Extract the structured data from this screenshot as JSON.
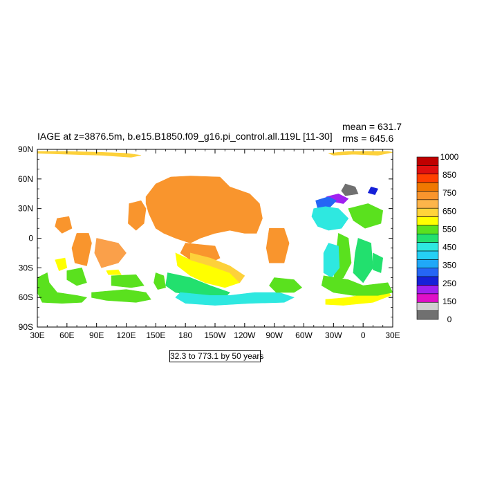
{
  "title": "IAGE at z=3876.5m, b.e15.B1850.f09_g16.pi_control.all.119L [11-30]",
  "stats": {
    "mean": "mean = 631.7",
    "rms": "rms = 645.6"
  },
  "subtitle": "32.3 to 773.1 by 50 years",
  "map": {
    "projection": "cylindrical-equidistant",
    "lon_range": [
      30,
      390
    ],
    "lat_range": [
      -90,
      90
    ],
    "x_ticks": [
      "30E",
      "60E",
      "90E",
      "120E",
      "150E",
      "180",
      "150W",
      "120W",
      "90W",
      "60W",
      "30W",
      "0",
      "30E"
    ],
    "y_ticks": [
      "90N",
      "60N",
      "30N",
      "0",
      "30S",
      "60S",
      "90S"
    ],
    "regions": [
      {
        "id": "arctic-west",
        "color": "#fdd13a",
        "poly": [
          [
            30,
            88
          ],
          [
            60,
            88
          ],
          [
            95,
            87
          ],
          [
            120,
            86
          ],
          [
            135,
            84
          ],
          [
            125,
            82
          ],
          [
            95,
            84
          ],
          [
            60,
            85
          ],
          [
            30,
            86
          ]
        ]
      },
      {
        "id": "arctic-east",
        "color": "#fdd13a",
        "poly": [
          [
            325,
            86
          ],
          [
            345,
            88
          ],
          [
            385,
            88
          ],
          [
            390,
            87
          ],
          [
            375,
            84
          ],
          [
            350,
            85
          ],
          [
            330,
            84
          ]
        ]
      },
      {
        "id": "n-pacific-orange",
        "color": "#f9952d",
        "poly": [
          [
            140,
            42
          ],
          [
            150,
            55
          ],
          [
            165,
            62
          ],
          [
            185,
            63
          ],
          [
            215,
            62
          ],
          [
            225,
            52
          ],
          [
            245,
            45
          ],
          [
            255,
            35
          ],
          [
            258,
            20
          ],
          [
            252,
            5
          ],
          [
            240,
            5
          ],
          [
            225,
            8
          ],
          [
            210,
            5
          ],
          [
            195,
            0
          ],
          [
            185,
            -5
          ],
          [
            170,
            0
          ],
          [
            158,
            5
          ],
          [
            150,
            10
          ],
          [
            143,
            25
          ],
          [
            140,
            35
          ]
        ]
      },
      {
        "id": "w-pacific-orange",
        "color": "#f9952d",
        "poly": [
          [
            123,
            35
          ],
          [
            135,
            38
          ],
          [
            140,
            30
          ],
          [
            138,
            15
          ],
          [
            130,
            8
          ],
          [
            122,
            15
          ]
        ]
      },
      {
        "id": "central-pacific-orange",
        "color": "#f9952d",
        "poly": [
          [
            180,
            -5
          ],
          [
            210,
            -8
          ],
          [
            215,
            -20
          ],
          [
            205,
            -25
          ],
          [
            185,
            -22
          ],
          [
            175,
            -15
          ]
        ]
      },
      {
        "id": "indian-orange-1",
        "color": "#f9952d",
        "poly": [
          [
            70,
            5
          ],
          [
            82,
            5
          ],
          [
            85,
            -5
          ],
          [
            80,
            -28
          ],
          [
            68,
            -25
          ],
          [
            65,
            -10
          ]
        ]
      },
      {
        "id": "indian-orange-2",
        "color": "#faa04a",
        "poly": [
          [
            90,
            0
          ],
          [
            112,
            -5
          ],
          [
            120,
            -15
          ],
          [
            112,
            -25
          ],
          [
            95,
            -30
          ],
          [
            88,
            -15
          ]
        ]
      },
      {
        "id": "arabian",
        "color": "#f9952d",
        "poly": [
          [
            50,
            20
          ],
          [
            62,
            22
          ],
          [
            65,
            10
          ],
          [
            55,
            5
          ],
          [
            48,
            12
          ]
        ]
      },
      {
        "id": "atlantic-orange",
        "color": "#f9952d",
        "poly": [
          [
            265,
            10
          ],
          [
            280,
            10
          ],
          [
            285,
            -5
          ],
          [
            280,
            -25
          ],
          [
            265,
            -25
          ],
          [
            262,
            -10
          ]
        ]
      },
      {
        "id": "arctic-gray",
        "color": "#707070",
        "poly": [
          [
            342,
            55
          ],
          [
            352,
            52
          ],
          [
            355,
            45
          ],
          [
            342,
            43
          ],
          [
            338,
            48
          ]
        ]
      },
      {
        "id": "labrador-purple",
        "color": "#a020f0",
        "poly": [
          [
            323,
            42
          ],
          [
            335,
            45
          ],
          [
            345,
            40
          ],
          [
            340,
            35
          ],
          [
            325,
            38
          ]
        ]
      },
      {
        "id": "nordic-blue",
        "color": "#1520d8",
        "poly": [
          [
            368,
            52
          ],
          [
            375,
            50
          ],
          [
            372,
            44
          ],
          [
            365,
            46
          ]
        ]
      },
      {
        "id": "n-atlantic-blue",
        "color": "#2566f5",
        "poly": [
          [
            312,
            38
          ],
          [
            325,
            42
          ],
          [
            333,
            38
          ],
          [
            325,
            30
          ],
          [
            314,
            30
          ]
        ]
      },
      {
        "id": "n-atlantic-cyan",
        "color": "#2ee8e0",
        "poly": [
          [
            310,
            30
          ],
          [
            322,
            32
          ],
          [
            335,
            30
          ],
          [
            345,
            20
          ],
          [
            338,
            10
          ],
          [
            325,
            8
          ],
          [
            314,
            12
          ],
          [
            308,
            22
          ]
        ]
      },
      {
        "id": "n-atlantic-green",
        "color": "#5ae11e",
        "poly": [
          [
            345,
            30
          ],
          [
            365,
            35
          ],
          [
            380,
            28
          ],
          [
            378,
            15
          ],
          [
            362,
            10
          ],
          [
            350,
            18
          ]
        ]
      },
      {
        "id": "s-atlantic-green",
        "color": "#5ae11e",
        "poly": [
          [
            335,
            5
          ],
          [
            345,
            0
          ],
          [
            348,
            -25
          ],
          [
            340,
            -40
          ],
          [
            330,
            -45
          ],
          [
            332,
            -20
          ]
        ]
      },
      {
        "id": "s-atlantic-cyan",
        "color": "#2ee8e0",
        "poly": [
          [
            325,
            -5
          ],
          [
            335,
            -8
          ],
          [
            336,
            -30
          ],
          [
            328,
            -40
          ],
          [
            320,
            -35
          ],
          [
            320,
            -15
          ]
        ]
      },
      {
        "id": "s-atlantic-green-2",
        "color": "#22e06e",
        "poly": [
          [
            355,
            0
          ],
          [
            368,
            -5
          ],
          [
            370,
            -30
          ],
          [
            360,
            -45
          ],
          [
            350,
            -35
          ],
          [
            352,
            -15
          ]
        ]
      },
      {
        "id": "s-atlantic-green-3",
        "color": "#22e06e",
        "poly": [
          [
            370,
            -15
          ],
          [
            380,
            -20
          ],
          [
            378,
            -35
          ],
          [
            370,
            -32
          ]
        ]
      },
      {
        "id": "south-atlantic-yellow",
        "color": "#ffff00",
        "poly": [
          [
            322,
            -62
          ],
          [
            345,
            -60
          ],
          [
            370,
            -55
          ],
          [
            385,
            -53
          ],
          [
            388,
            -58
          ],
          [
            370,
            -65
          ],
          [
            340,
            -68
          ],
          [
            322,
            -67
          ]
        ]
      },
      {
        "id": "south-atlantic-green",
        "color": "#5ae11e",
        "poly": [
          [
            320,
            -38
          ],
          [
            345,
            -42
          ],
          [
            360,
            -48
          ],
          [
            385,
            -45
          ],
          [
            390,
            -55
          ],
          [
            375,
            -58
          ],
          [
            350,
            -58
          ],
          [
            330,
            -55
          ],
          [
            318,
            -48
          ]
        ]
      },
      {
        "id": "indian-yellow-1",
        "color": "#ffff00",
        "poly": [
          [
            48,
            -22
          ],
          [
            58,
            -20
          ],
          [
            60,
            -30
          ],
          [
            52,
            -33
          ]
        ]
      },
      {
        "id": "indian-yellow-2",
        "color": "#ffff00",
        "poly": [
          [
            100,
            -33
          ],
          [
            112,
            -32
          ],
          [
            115,
            -37
          ],
          [
            102,
            -37
          ]
        ]
      },
      {
        "id": "indian-green-w",
        "color": "#5ae11e",
        "poly": [
          [
            30,
            -40
          ],
          [
            40,
            -35
          ],
          [
            42,
            -45
          ],
          [
            50,
            -55
          ],
          [
            70,
            -58
          ],
          [
            80,
            -60
          ],
          [
            75,
            -65
          ],
          [
            55,
            -66
          ],
          [
            35,
            -65
          ],
          [
            30,
            -55
          ]
        ]
      },
      {
        "id": "indian-green-mid",
        "color": "#5ae11e",
        "poly": [
          [
            60,
            -33
          ],
          [
            75,
            -30
          ],
          [
            80,
            -45
          ],
          [
            70,
            -48
          ],
          [
            60,
            -42
          ]
        ]
      },
      {
        "id": "indian-green-e",
        "color": "#5ae11e",
        "poly": [
          [
            105,
            -38
          ],
          [
            130,
            -37
          ],
          [
            138,
            -48
          ],
          [
            125,
            -50
          ],
          [
            105,
            -48
          ]
        ]
      },
      {
        "id": "australia-south-green",
        "color": "#5ae11e",
        "poly": [
          [
            85,
            -55
          ],
          [
            120,
            -52
          ],
          [
            140,
            -55
          ],
          [
            145,
            -62
          ],
          [
            130,
            -65
          ],
          [
            100,
            -63
          ],
          [
            85,
            -60
          ]
        ]
      },
      {
        "id": "tasman-green",
        "color": "#5ae11e",
        "poly": [
          [
            150,
            -35
          ],
          [
            158,
            -38
          ],
          [
            160,
            -50
          ],
          [
            152,
            -52
          ],
          [
            148,
            -45
          ]
        ]
      },
      {
        "id": "pacific-yellow",
        "color": "#ffff00",
        "poly": [
          [
            170,
            -15
          ],
          [
            185,
            -22
          ],
          [
            205,
            -28
          ],
          [
            225,
            -35
          ],
          [
            235,
            -45
          ],
          [
            220,
            -50
          ],
          [
            200,
            -45
          ],
          [
            185,
            -38
          ],
          [
            172,
            -28
          ]
        ]
      },
      {
        "id": "pacific-orange-band",
        "color": "#fdd13a",
        "poly": [
          [
            185,
            -15
          ],
          [
            205,
            -20
          ],
          [
            225,
            -28
          ],
          [
            240,
            -38
          ],
          [
            235,
            -45
          ],
          [
            225,
            -35
          ],
          [
            205,
            -28
          ],
          [
            185,
            -22
          ]
        ]
      },
      {
        "id": "s-pacific-green",
        "color": "#22e06e",
        "poly": [
          [
            162,
            -35
          ],
          [
            185,
            -40
          ],
          [
            205,
            -48
          ],
          [
            225,
            -55
          ],
          [
            220,
            -60
          ],
          [
            195,
            -58
          ],
          [
            170,
            -55
          ],
          [
            160,
            -48
          ]
        ]
      },
      {
        "id": "s-pacific-cyan",
        "color": "#2ee8e0",
        "poly": [
          [
            175,
            -55
          ],
          [
            205,
            -58
          ],
          [
            225,
            -58
          ],
          [
            250,
            -55
          ],
          [
            275,
            -55
          ],
          [
            290,
            -60
          ],
          [
            280,
            -65
          ],
          [
            245,
            -66
          ],
          [
            210,
            -68
          ],
          [
            180,
            -66
          ],
          [
            170,
            -60
          ]
        ]
      },
      {
        "id": "s-pacific-green-2",
        "color": "#5ae11e",
        "poly": [
          [
            270,
            -40
          ],
          [
            290,
            -42
          ],
          [
            298,
            -50
          ],
          [
            290,
            -55
          ],
          [
            272,
            -55
          ],
          [
            265,
            -48
          ]
        ]
      }
    ],
    "colorbar": {
      "levels": [
        "1000",
        "850",
        "750",
        "650",
        "550",
        "450",
        "350",
        "250",
        "150",
        "0"
      ],
      "colors": [
        "#c00000",
        "#e01010",
        "#ff4000",
        "#f07800",
        "#f9952d",
        "#fdb54a",
        "#ffd43a",
        "#ffff00",
        "#5ae11e",
        "#22e06e",
        "#2ee8e0",
        "#25d0f5",
        "#20a8f8",
        "#2566f5",
        "#1520d8",
        "#a020f0",
        "#e010c8",
        "#d0d0d0",
        "#707070"
      ]
    }
  }
}
